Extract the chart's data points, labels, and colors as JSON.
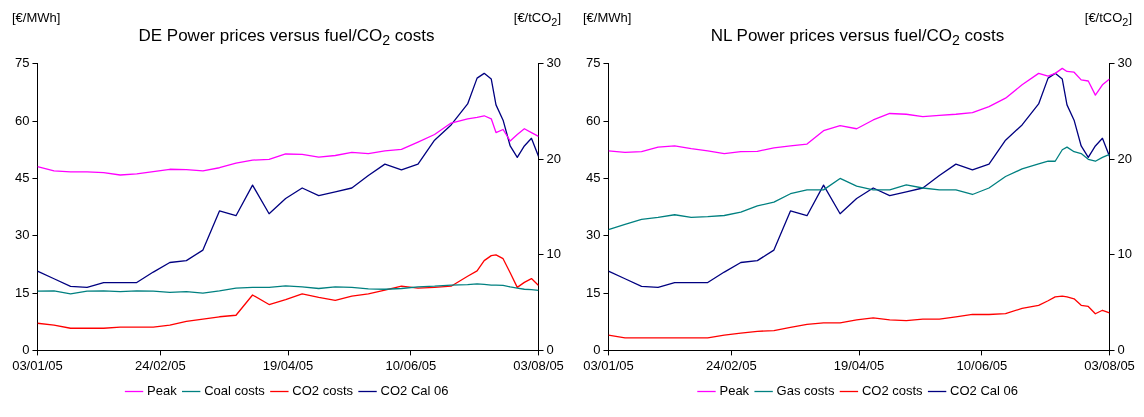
{
  "chart_data": [
    {
      "type": "line",
      "title": "DE Power prices versus fuel/CO$_{2}$ costs",
      "ylabel": "[€/MWh]",
      "y2label": "[€/tCO$_{2}$]",
      "x": [
        "2005-01-03",
        "2005-01-10",
        "2005-01-17",
        "2005-01-24",
        "2005-01-31",
        "2005-02-07",
        "2005-02-14",
        "2005-02-21",
        "2005-02-28",
        "2005-03-07",
        "2005-03-14",
        "2005-03-21",
        "2005-03-28",
        "2005-04-04",
        "2005-04-11",
        "2005-04-18",
        "2005-04-25",
        "2005-05-02",
        "2005-05-09",
        "2005-05-16",
        "2005-05-23",
        "2005-05-30",
        "2005-06-06",
        "2005-06-13",
        "2005-06-20",
        "2005-06-27",
        "2005-07-04",
        "2005-07-08",
        "2005-07-11",
        "2005-07-14",
        "2005-07-16",
        "2005-07-19",
        "2005-07-22",
        "2005-07-25",
        "2005-07-28",
        "2005-07-31",
        "2005-08-03"
      ],
      "series": [
        {
          "name": "Peak",
          "color": "#ff00ff",
          "values": [
            48.1,
            47,
            46.7,
            46.7,
            46.5,
            45.9,
            46.2,
            46.8,
            47.4,
            47.3,
            47,
            47.8,
            49,
            49.8,
            50,
            51.4,
            51.3,
            50.6,
            51,
            51.8,
            51.5,
            52.2,
            52.6,
            54.5,
            56.5,
            59.5,
            60.6,
            61,
            61.4,
            60.6,
            57,
            57.8,
            54.8,
            56.5,
            58,
            57,
            56
          ]
        },
        {
          "name": "Coal costs",
          "color": "#008080",
          "values": [
            15.5,
            15.6,
            14.8,
            15.5,
            15.6,
            15.4,
            15.6,
            15.5,
            15.2,
            15.4,
            15,
            15.6,
            16.3,
            16.5,
            16.5,
            16.9,
            16.6,
            16.2,
            16.6,
            16.5,
            16.1,
            16,
            16.2,
            16.6,
            16.8,
            17.1,
            17.2,
            17.4,
            17.3,
            17.1,
            17.1,
            17,
            16.6,
            16.3,
            16,
            15.9,
            15.7
          ]
        },
        {
          "name": "CO2 costs",
          "color": "#ff0000",
          "values": [
            7.1,
            6.6,
            5.8,
            5.8,
            5.8,
            6.1,
            6.1,
            6.1,
            6.6,
            7.6,
            8.2,
            8.8,
            9.2,
            14.5,
            12,
            13.3,
            14.8,
            13.9,
            13.1,
            14.2,
            14.8,
            15.8,
            16.8,
            16.3,
            16.5,
            16.8,
            19.4,
            20.8,
            23.5,
            24.8,
            25,
            24,
            20.3,
            16.5,
            17.8,
            18.8,
            17
          ]
        },
        {
          "name": "CO2 Cal 06",
          "color": "#000080",
          "axis": "y2",
          "values": [
            8.3,
            7.5,
            6.7,
            6.6,
            7.1,
            7.1,
            7.1,
            8.2,
            9.2,
            9.4,
            10.5,
            14.6,
            14.1,
            17.3,
            14.3,
            15.9,
            17,
            16.2,
            16.6,
            17,
            18.3,
            19.5,
            18.9,
            19.5,
            22,
            23.6,
            25.8,
            28.5,
            29,
            28.4,
            25.7,
            24.1,
            21.4,
            20.2,
            21.4,
            22.2,
            20.3
          ]
        }
      ],
      "ylim": [
        0,
        75
      ],
      "yticks": [
        0,
        15,
        30,
        45,
        60,
        75
      ],
      "y2lim": [
        0,
        30
      ],
      "y2ticks": [
        0,
        10,
        20,
        30
      ],
      "xlim": [
        "2005-01-03",
        "2005-08-03"
      ],
      "xticks": [
        {
          "value": "2005-01-03",
          "label": "03/01/05"
        },
        {
          "value": "2005-02-24",
          "label": "24/02/05"
        },
        {
          "value": "2005-04-19",
          "label": "19/04/05"
        },
        {
          "value": "2005-06-10",
          "label": "10/06/05"
        },
        {
          "value": "2005-08-03",
          "label": "03/08/05"
        }
      ],
      "legend": "bottom",
      "grid": false
    },
    {
      "type": "line",
      "title": "NL Power prices versus fuel/CO$_{2}$ costs",
      "ylabel": "[€/MWh]",
      "y2label": "[€/tCO$_{2}$]",
      "x": [
        "2005-01-03",
        "2005-01-10",
        "2005-01-17",
        "2005-01-24",
        "2005-01-31",
        "2005-02-07",
        "2005-02-14",
        "2005-02-21",
        "2005-02-28",
        "2005-03-07",
        "2005-03-14",
        "2005-03-21",
        "2005-03-28",
        "2005-04-04",
        "2005-04-11",
        "2005-04-18",
        "2005-04-25",
        "2005-05-02",
        "2005-05-09",
        "2005-05-16",
        "2005-05-23",
        "2005-05-30",
        "2005-06-06",
        "2005-06-13",
        "2005-06-20",
        "2005-06-27",
        "2005-07-04",
        "2005-07-08",
        "2005-07-11",
        "2005-07-14",
        "2005-07-16",
        "2005-07-19",
        "2005-07-22",
        "2005-07-25",
        "2005-07-28",
        "2005-07-31",
        "2005-08-03"
      ],
      "series": [
        {
          "name": "Peak",
          "color": "#ff00ff",
          "values": [
            52.2,
            51.8,
            52,
            53.2,
            53.5,
            52.8,
            52.2,
            51.5,
            52,
            52.1,
            53,
            53.5,
            54,
            57.5,
            58.8,
            58,
            60.3,
            62,
            61.8,
            61.2,
            61.5,
            61.8,
            62.2,
            63.8,
            66,
            69.5,
            72.5,
            71.8,
            72.5,
            73.8,
            73,
            72.8,
            70.8,
            70.5,
            66.8,
            69.5,
            71
          ]
        },
        {
          "name": "Gas costs",
          "color": "#008080",
          "values": [
            31.6,
            33,
            34.3,
            34.8,
            35.5,
            34.8,
            35,
            35.3,
            36.2,
            37.8,
            38.8,
            41,
            42,
            42,
            45,
            43,
            42,
            42,
            43.3,
            42.5,
            42,
            42,
            40.8,
            42.5,
            45.5,
            47.5,
            48.8,
            49.5,
            49.5,
            52.5,
            53.2,
            52,
            51.5,
            50,
            49.5,
            50.5,
            51.3
          ]
        },
        {
          "name": "CO2 costs",
          "color": "#ff0000",
          "values": [
            4,
            3.3,
            3.3,
            3.3,
            3.3,
            3.3,
            3.3,
            4,
            4.5,
            5,
            5.2,
            6,
            6.8,
            7.2,
            7.2,
            8,
            8.5,
            8,
            7.8,
            8.2,
            8.2,
            8.8,
            9.4,
            9.4,
            9.6,
            11,
            11.8,
            13,
            14,
            14.2,
            14,
            13.5,
            11.8,
            11.5,
            9.6,
            10.5,
            9.8
          ]
        },
        {
          "name": "CO2 Cal 06",
          "color": "#000080",
          "axis": "y2",
          "values": [
            8.3,
            7.5,
            6.7,
            6.6,
            7.1,
            7.1,
            7.1,
            8.2,
            9.2,
            9.4,
            10.5,
            14.6,
            14.1,
            17.3,
            14.3,
            15.9,
            17,
            16.2,
            16.6,
            17,
            18.3,
            19.5,
            18.9,
            19.5,
            22,
            23.6,
            25.8,
            28.5,
            29,
            28.4,
            25.7,
            24.1,
            21.4,
            20.2,
            21.4,
            22.2,
            20.3
          ]
        }
      ],
      "ylim": [
        0,
        75
      ],
      "yticks": [
        0,
        15,
        30,
        45,
        60,
        75
      ],
      "y2lim": [
        0,
        30
      ],
      "y2ticks": [
        0,
        10,
        20,
        30
      ],
      "xlim": [
        "2005-01-03",
        "2005-08-03"
      ],
      "xticks": [
        {
          "value": "2005-01-03",
          "label": "03/01/05"
        },
        {
          "value": "2005-02-24",
          "label": "24/02/05"
        },
        {
          "value": "2005-04-19",
          "label": "19/04/05"
        },
        {
          "value": "2005-06-10",
          "label": "10/06/05"
        },
        {
          "value": "2005-08-03",
          "label": "03/08/05"
        }
      ],
      "legend": "bottom",
      "grid": false
    }
  ]
}
